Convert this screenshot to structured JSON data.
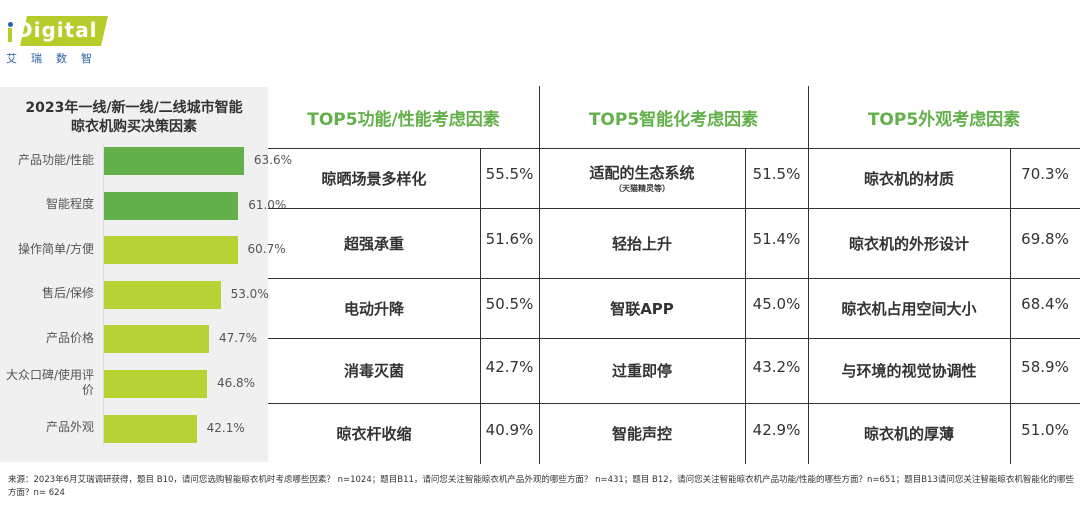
{
  "logo": {
    "text": "Digital",
    "cn": "艾瑞数智"
  },
  "chart_data": {
    "type": "bar",
    "title": "2023年一线/新一线/二线城市智能晾衣机购买决策因素",
    "categories": [
      "产品功能/性能",
      "智能程度",
      "操作简单/方便",
      "售后/保修",
      "产品价格",
      "大众口碑/使用评价",
      "产品外观"
    ],
    "values": [
      63.6,
      61.0,
      60.7,
      53.0,
      47.7,
      46.8,
      42.1
    ],
    "labels": [
      "63.6%",
      "61.0%",
      "60.7%",
      "53.0%",
      "47.7%",
      "46.8%",
      "42.1%"
    ],
    "colors": [
      "#62b04a",
      "#62b04a",
      "#b5d334",
      "#b5d334",
      "#b5d334",
      "#b5d334",
      "#b5d334"
    ],
    "xlim": [
      0,
      100
    ]
  },
  "table": {
    "columns": [
      {
        "title": "TOP5功能/性能考虑因素",
        "rows": [
          {
            "name": "晾晒场景多样化",
            "value": "55.5%"
          },
          {
            "name": "超强承重",
            "value": "51.6%"
          },
          {
            "name": "电动升降",
            "value": "50.5%"
          },
          {
            "name": "消毒灭菌",
            "value": "42.7%"
          },
          {
            "name": "晾衣杆收缩",
            "value": "40.9%"
          }
        ]
      },
      {
        "title": "TOP5智能化考虑因素",
        "rows": [
          {
            "name": "适配的生态系统",
            "note": "（天猫精灵等）",
            "value": "51.5%"
          },
          {
            "name": "轻抬上升",
            "value": "51.4%"
          },
          {
            "name": "智联APP",
            "value": "45.0%"
          },
          {
            "name": "过重即停",
            "value": "43.2%"
          },
          {
            "name": "智能声控",
            "value": "42.9%"
          }
        ]
      },
      {
        "title": "TOP5外观考虑因素",
        "rows": [
          {
            "name": "晾衣机的材质",
            "value": "70.3%"
          },
          {
            "name": "晾衣机的外形设计",
            "value": "69.8%"
          },
          {
            "name": "晾衣机占用空间大小",
            "value": "68.4%"
          },
          {
            "name": "与环境的视觉协调性",
            "value": "58.9%"
          },
          {
            "name": "晾衣机的厚薄",
            "value": "51.0%"
          }
        ]
      }
    ]
  },
  "footnote": "来源：2023年6月艾瑞调研获得，题目 B10，请问您选购智能晾衣机时考虑哪些因素？ n=1024；题目B11，请问您关注智能晾衣机产品外观的哪些方面？ n=431；题目 B12，请问您关注智能晾衣机产品功能/性能的哪些方面？n=651；题目B13请问您关注智能晾衣机智能化的哪些方面？n= 624"
}
